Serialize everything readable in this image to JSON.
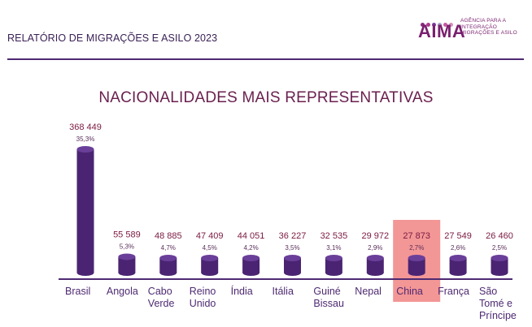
{
  "header": {
    "report_title": "RELATÓRIO DE MIGRAÇÕES E ASILO 2023",
    "logo": {
      "name": "AIMA",
      "tagline": [
        "AGÊNCIA PARA A",
        "INTEGRAÇÃO",
        "MIGRAÇÕES E ASILO"
      ],
      "dot_colors": [
        "#8b2a7c",
        "#b03a8e",
        "#7b3fa0",
        "#a9a6c9",
        "#c55aa0",
        "#d48fbf"
      ]
    }
  },
  "chart_data": {
    "type": "bar",
    "title": "NACIONALIDADES MAIS REPRESENTATIVAS",
    "categories": [
      [
        "Brasil"
      ],
      [
        "Angola"
      ],
      [
        "Cabo",
        "Verde"
      ],
      [
        "Reino",
        "Unido"
      ],
      [
        "Índia"
      ],
      [
        "Itália"
      ],
      [
        "Guiné",
        "Bissau"
      ],
      [
        "Nepal"
      ],
      [
        "China"
      ],
      [
        "França"
      ],
      [
        "São",
        "Tomé e",
        "Príncipe"
      ]
    ],
    "values": [
      368449,
      55589,
      48885,
      47409,
      44051,
      36227,
      32535,
      29972,
      27873,
      27549,
      26460
    ],
    "value_labels": [
      "368 449",
      "55 589",
      "48 885",
      "47 409",
      "44 051",
      "36 227",
      "32 535",
      "29 972",
      "27 873",
      "27 549",
      "26 460"
    ],
    "percent_labels": [
      "35,3%",
      "5,3%",
      "4,7%",
      "4,5%",
      "4,2%",
      "3,5%",
      "3,1%",
      "2,9%",
      "2,7%",
      "2,6%",
      "2,5%"
    ],
    "highlighted_category": "China",
    "colors": {
      "bar": "#4a2472",
      "bar_top": "#6a3f9a",
      "highlight": "#f28b8b",
      "baseline": "#4e2a72"
    },
    "grid": false,
    "legend": "none"
  }
}
